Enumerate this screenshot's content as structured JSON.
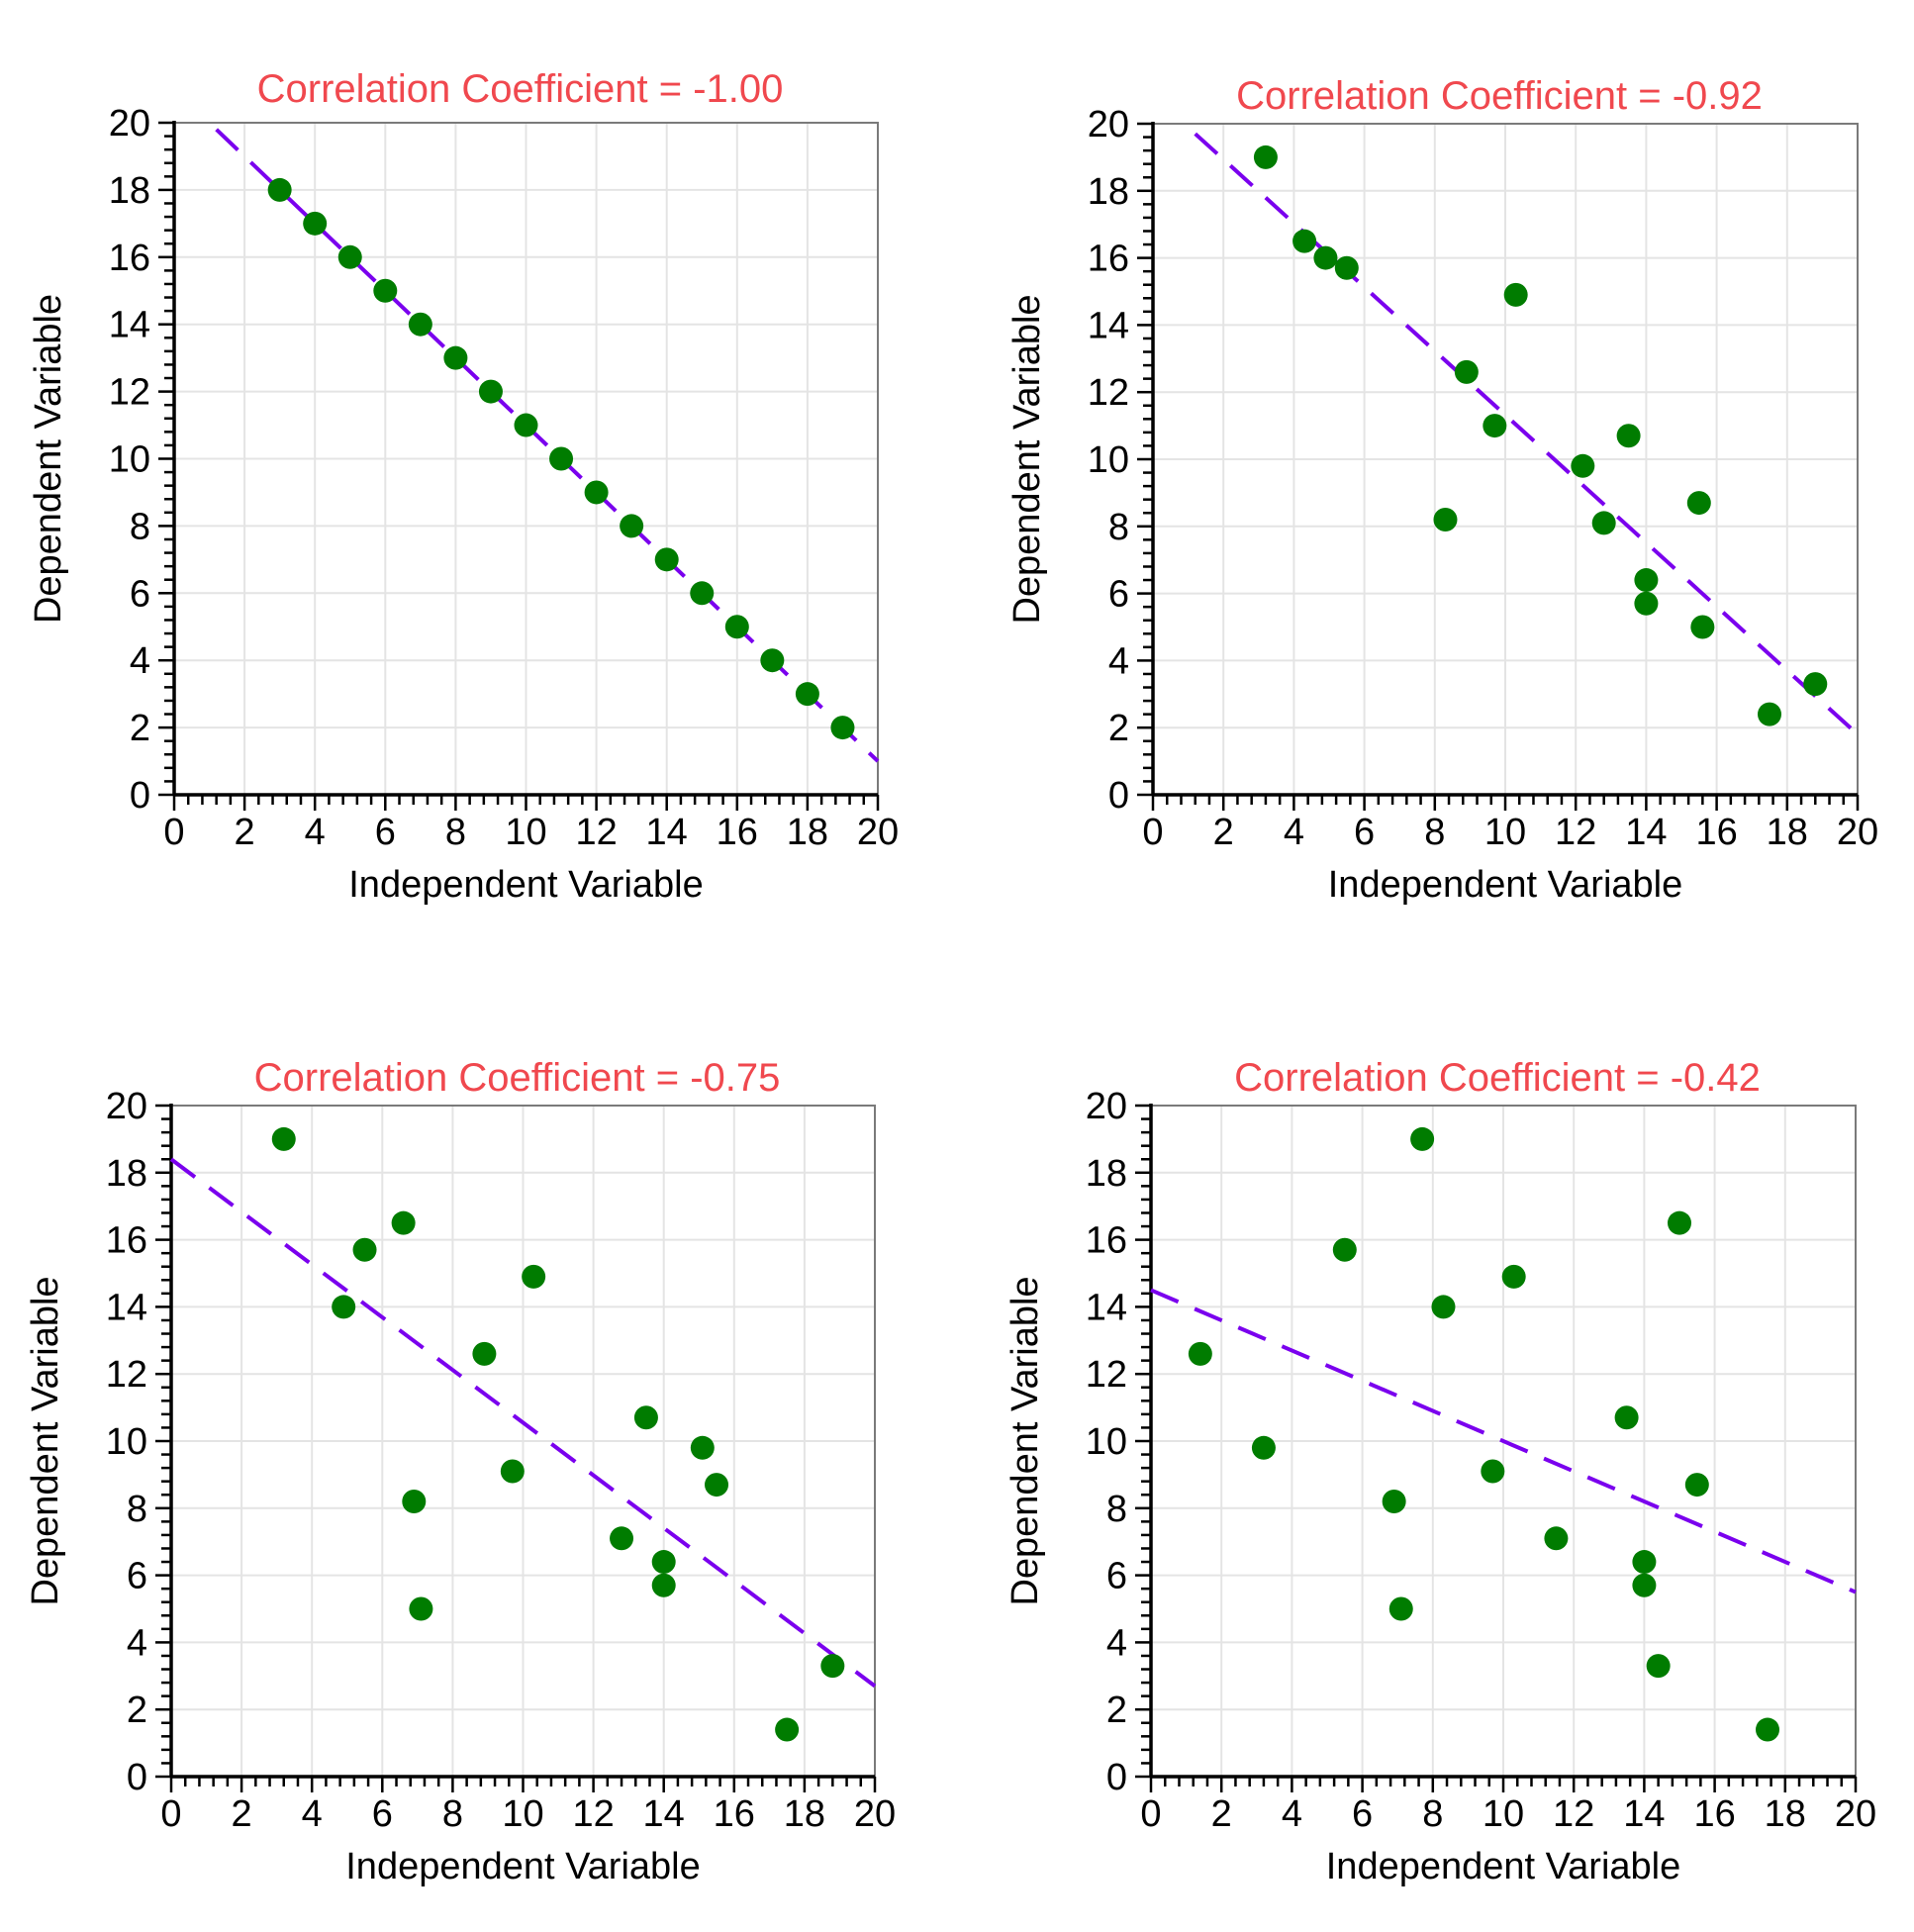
{
  "figure": {
    "background": "#ffffff",
    "colors": {
      "title": "#f0484e",
      "points": "#007c00",
      "fit_line": "#7a00ee",
      "grid": "#e4e4e4"
    }
  },
  "chart_data": [
    {
      "type": "scatter",
      "title": "Correlation Coefficient = -1.00",
      "xlabel": "Independent Variable",
      "ylabel": "Dependent Variable",
      "xlim": [
        0,
        20
      ],
      "ylim": [
        0,
        20
      ],
      "xticks": [
        0,
        2,
        4,
        6,
        8,
        10,
        12,
        14,
        16,
        18,
        20
      ],
      "yticks": [
        0,
        2,
        4,
        6,
        8,
        10,
        12,
        14,
        16,
        18,
        20
      ],
      "grid": true,
      "points": [
        [
          3,
          18
        ],
        [
          4,
          17
        ],
        [
          5,
          16
        ],
        [
          6,
          15
        ],
        [
          7,
          14
        ],
        [
          8,
          13
        ],
        [
          9,
          12
        ],
        [
          10,
          11
        ],
        [
          11,
          10
        ],
        [
          12,
          9
        ],
        [
          13,
          8
        ],
        [
          14,
          7
        ],
        [
          15,
          6
        ],
        [
          16,
          5
        ],
        [
          17,
          4
        ],
        [
          18,
          3
        ],
        [
          19,
          2
        ]
      ],
      "fit_line": {
        "style": "dashed",
        "x": [
          1.2,
          20
        ],
        "y": [
          19.8,
          1.0
        ]
      }
    },
    {
      "type": "scatter",
      "title": "Correlation Coefficient = -0.92",
      "xlabel": "Independent Variable",
      "ylabel": "Dependent Variable",
      "xlim": [
        0,
        20
      ],
      "ylim": [
        0,
        20
      ],
      "xticks": [
        0,
        2,
        4,
        6,
        8,
        10,
        12,
        14,
        16,
        18,
        20
      ],
      "yticks": [
        0,
        2,
        4,
        6,
        8,
        10,
        12,
        14,
        16,
        18,
        20
      ],
      "grid": true,
      "points": [
        [
          3.2,
          19.0
        ],
        [
          4.3,
          16.5
        ],
        [
          4.9,
          16.0
        ],
        [
          5.5,
          15.7
        ],
        [
          10.3,
          14.9
        ],
        [
          8.9,
          12.6
        ],
        [
          9.7,
          11.0
        ],
        [
          13.5,
          10.7
        ],
        [
          12.2,
          9.8
        ],
        [
          15.5,
          8.7
        ],
        [
          8.3,
          8.2
        ],
        [
          12.8,
          8.1
        ],
        [
          14.0,
          6.4
        ],
        [
          14.0,
          5.7
        ],
        [
          15.6,
          5.0
        ],
        [
          18.8,
          3.3
        ],
        [
          17.5,
          2.4
        ]
      ],
      "fit_line": {
        "style": "dashed",
        "x": [
          1.2,
          20
        ],
        "y": [
          19.7,
          1.8
        ]
      }
    },
    {
      "type": "scatter",
      "title": "Correlation Coefficient = -0.75",
      "xlabel": "Independent Variable",
      "ylabel": "Dependent Variable",
      "xlim": [
        0,
        20
      ],
      "ylim": [
        0,
        20
      ],
      "xticks": [
        0,
        2,
        4,
        6,
        8,
        10,
        12,
        14,
        16,
        18,
        20
      ],
      "yticks": [
        0,
        2,
        4,
        6,
        8,
        10,
        12,
        14,
        16,
        18,
        20
      ],
      "grid": true,
      "points": [
        [
          3.2,
          19.0
        ],
        [
          6.6,
          16.5
        ],
        [
          5.5,
          15.7
        ],
        [
          10.3,
          14.9
        ],
        [
          4.9,
          14.0
        ],
        [
          8.9,
          12.6
        ],
        [
          13.5,
          10.7
        ],
        [
          15.1,
          9.8
        ],
        [
          9.7,
          9.1
        ],
        [
          15.5,
          8.7
        ],
        [
          6.9,
          8.2
        ],
        [
          12.8,
          7.1
        ],
        [
          14.0,
          6.4
        ],
        [
          14.0,
          5.7
        ],
        [
          7.1,
          5.0
        ],
        [
          18.8,
          3.3
        ],
        [
          17.5,
          1.4
        ]
      ],
      "fit_line": {
        "style": "dashed",
        "x": [
          0,
          20
        ],
        "y": [
          18.4,
          2.7
        ]
      }
    },
    {
      "type": "scatter",
      "title": "Correlation Coefficient = -0.42",
      "xlabel": "Independent Variable",
      "ylabel": "Dependent Variable",
      "xlim": [
        0,
        20
      ],
      "ylim": [
        0,
        20
      ],
      "xticks": [
        0,
        2,
        4,
        6,
        8,
        10,
        12,
        14,
        16,
        18,
        20
      ],
      "yticks": [
        0,
        2,
        4,
        6,
        8,
        10,
        12,
        14,
        16,
        18,
        20
      ],
      "grid": true,
      "points": [
        [
          7.7,
          19.0
        ],
        [
          15.0,
          16.5
        ],
        [
          5.5,
          15.7
        ],
        [
          10.3,
          14.9
        ],
        [
          8.3,
          14.0
        ],
        [
          1.4,
          12.6
        ],
        [
          3.2,
          9.8
        ],
        [
          13.5,
          10.7
        ],
        [
          9.7,
          9.1
        ],
        [
          15.5,
          8.7
        ],
        [
          6.9,
          8.2
        ],
        [
          11.5,
          7.1
        ],
        [
          14.0,
          6.4
        ],
        [
          14.0,
          5.7
        ],
        [
          7.1,
          5.0
        ],
        [
          14.4,
          3.3
        ],
        [
          17.5,
          1.4
        ]
      ],
      "fit_line": {
        "style": "dashed",
        "x": [
          0,
          20
        ],
        "y": [
          14.5,
          5.5
        ]
      }
    }
  ]
}
